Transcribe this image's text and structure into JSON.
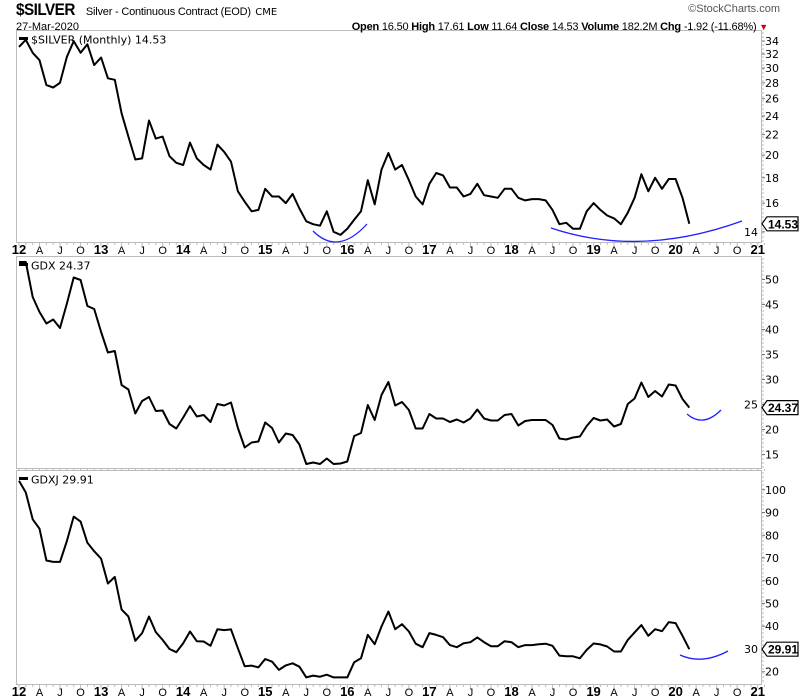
{
  "header": {
    "symbol": "$SILVER",
    "description": "Silver - Continuous Contract (EOD)",
    "exchange": "CME",
    "copyright": "©StockCharts.com",
    "date": "27-Mar-2020",
    "open_label": "Open",
    "open": "16.50",
    "high_label": "High",
    "high": "17.61",
    "low_label": "Low",
    "low": "11.64",
    "close_label": "Close",
    "close": "14.53",
    "volume_label": "Volume",
    "volume": "182.2M",
    "chg_label": "Chg",
    "chg": "-1.92 (-11.68%)",
    "chg_direction_icon": "down-triangle-icon",
    "colors": {
      "line": "#000000",
      "annotation": "#2020ff",
      "down": "#cc0000"
    }
  },
  "x_axis": {
    "start": "2012-01",
    "frequency": "monthly",
    "ticks": [
      {
        "m": 0,
        "label": "12",
        "year": true
      },
      {
        "m": 3,
        "label": "A"
      },
      {
        "m": 6,
        "label": "J"
      },
      {
        "m": 9,
        "label": "O"
      },
      {
        "m": 12,
        "label": "13",
        "year": true
      },
      {
        "m": 15,
        "label": "A"
      },
      {
        "m": 18,
        "label": "J"
      },
      {
        "m": 21,
        "label": "O"
      },
      {
        "m": 24,
        "label": "14",
        "year": true
      },
      {
        "m": 27,
        "label": "A"
      },
      {
        "m": 30,
        "label": "J"
      },
      {
        "m": 33,
        "label": "O"
      },
      {
        "m": 36,
        "label": "15",
        "year": true
      },
      {
        "m": 39,
        "label": "A"
      },
      {
        "m": 42,
        "label": "J"
      },
      {
        "m": 45,
        "label": "O"
      },
      {
        "m": 48,
        "label": "16",
        "year": true
      },
      {
        "m": 51,
        "label": "A"
      },
      {
        "m": 54,
        "label": "J"
      },
      {
        "m": 57,
        "label": "O"
      },
      {
        "m": 60,
        "label": "17",
        "year": true
      },
      {
        "m": 63,
        "label": "A"
      },
      {
        "m": 66,
        "label": "J"
      },
      {
        "m": 69,
        "label": "O"
      },
      {
        "m": 72,
        "label": "18",
        "year": true
      },
      {
        "m": 75,
        "label": "A"
      },
      {
        "m": 78,
        "label": "J"
      },
      {
        "m": 81,
        "label": "O"
      },
      {
        "m": 84,
        "label": "19",
        "year": true
      },
      {
        "m": 87,
        "label": "A"
      },
      {
        "m": 90,
        "label": "J"
      },
      {
        "m": 93,
        "label": "O"
      },
      {
        "m": 96,
        "label": "20",
        "year": true
      },
      {
        "m": 99,
        "label": "A"
      },
      {
        "m": 102,
        "label": "J"
      },
      {
        "m": 105,
        "label": "O"
      },
      {
        "m": 108,
        "label": "21",
        "year": true
      }
    ]
  },
  "chart_data": [
    {
      "type": "line",
      "legend": "$SILVER (Monthly) 14.53",
      "series_name": "$SILVER",
      "scale": "log",
      "ylim": [
        13.35,
        35.8
      ],
      "yticks": [
        14,
        16,
        18,
        20,
        22,
        24,
        26,
        28,
        30,
        32,
        34
      ],
      "last_value": "14.53",
      "values": [
        33.1,
        34.2,
        32.2,
        31.1,
        27.7,
        27.4,
        28.0,
        31.6,
        34.0,
        32.2,
        33.5,
        30.4,
        31.5,
        28.6,
        28.4,
        24.3,
        21.8,
        19.6,
        19.7,
        23.5,
        21.6,
        21.8,
        19.9,
        19.3,
        19.1,
        21.2,
        19.7,
        19.1,
        18.7,
        21.0,
        20.3,
        19.4,
        16.9,
        16.1,
        15.4,
        15.5,
        17.1,
        16.5,
        16.5,
        16.0,
        16.7,
        15.6,
        14.7,
        14.5,
        14.4,
        15.4,
        14.0,
        13.8,
        14.2,
        14.8,
        15.4,
        17.8,
        15.9,
        18.7,
        20.2,
        18.7,
        19.1,
        17.8,
        16.5,
        15.9,
        17.5,
        18.4,
        18.2,
        17.2,
        17.2,
        16.5,
        16.7,
        17.5,
        16.6,
        16.5,
        16.4,
        17.1,
        17.1,
        16.4,
        16.2,
        16.3,
        16.3,
        16.2,
        15.5,
        14.5,
        14.6,
        14.2,
        14.2,
        15.4,
        16.0,
        15.5,
        15.1,
        14.9,
        14.5,
        15.3,
        16.4,
        18.3,
        16.9,
        18.0,
        17.1,
        17.9,
        17.9,
        16.4,
        14.53
      ]
    },
    {
      "type": "line",
      "legend": "GDX 24.37",
      "series_name": "GDX",
      "scale": "linear",
      "ylim": [
        12.3,
        54.7
      ],
      "yticks": [
        15,
        20,
        25,
        30,
        35,
        40,
        45,
        50
      ],
      "last_value": "24.37",
      "values": [
        53.5,
        53.5,
        46.5,
        43.5,
        41.2,
        42.0,
        40.3,
        45.2,
        50.4,
        49.9,
        44.7,
        44.1,
        39.5,
        35.4,
        35.7,
        28.9,
        28.0,
        23.2,
        25.7,
        26.5,
        23.7,
        23.8,
        21.1,
        20.2,
        22.4,
        24.7,
        22.6,
        22.9,
        21.5,
        25.1,
        24.8,
        25.4,
        20.3,
        16.4,
        17.4,
        17.6,
        21.4,
        20.3,
        17.4,
        19.2,
        18.9,
        17.0,
        13.1,
        13.4,
        13.1,
        14.2,
        13.1,
        13.2,
        13.6,
        18.7,
        19.3,
        24.9,
        21.9,
        26.9,
        29.5,
        24.8,
        25.5,
        23.9,
        20.2,
        20.2,
        23.1,
        22.2,
        22.2,
        21.5,
        22.0,
        21.4,
        22.2,
        24.0,
        22.2,
        21.8,
        21.8,
        22.9,
        23.1,
        20.8,
        21.7,
        21.9,
        21.9,
        21.9,
        20.9,
        18.2,
        18.0,
        18.4,
        18.6,
        20.7,
        22.3,
        21.8,
        22.0,
        20.6,
        21.1,
        25.1,
        26.2,
        29.4,
        26.5,
        27.7,
        26.6,
        29.0,
        28.8,
        26.1,
        24.37
      ]
    },
    {
      "type": "line",
      "legend": "GDXJ 29.91",
      "series_name": "GDXJ",
      "scale": "linear",
      "ylim": [
        14.6,
        108.7
      ],
      "yticks": [
        20,
        30,
        40,
        50,
        60,
        70,
        80,
        90,
        100
      ],
      "last_value": "29.91",
      "values": [
        104,
        98.8,
        87.0,
        82.9,
        68.9,
        68.3,
        68.3,
        77.5,
        88.2,
        86.0,
        76.7,
        73.0,
        69.7,
        58.8,
        61.7,
        47.3,
        44.3,
        33.6,
        37.0,
        44.3,
        37.4,
        34.0,
        30.0,
        28.6,
        32.5,
        37.7,
        33.4,
        33.3,
        31.4,
        38.7,
        38.3,
        38.6,
        30.3,
        22.4,
        22.7,
        21.9,
        25.6,
        24.4,
        20.8,
        22.8,
        23.7,
        22.2,
        17.5,
        18.3,
        17.8,
        18.7,
        17.5,
        17.5,
        17.5,
        24.2,
        25.9,
        36.2,
        32.1,
        39.9,
        46.5,
        38.7,
        40.9,
        37.7,
        32.3,
        30.8,
        37.0,
        36.2,
        35.2,
        31.7,
        30.8,
        32.5,
        33.0,
        35.1,
        33.0,
        31.2,
        31.2,
        33.4,
        33.0,
        30.8,
        31.7,
        31.7,
        32.1,
        32.3,
        31.4,
        27.1,
        26.8,
        26.8,
        25.9,
        29.6,
        32.4,
        32.0,
        31.1,
        28.9,
        28.9,
        34.0,
        37.3,
        40.5,
        35.8,
        38.7,
        37.8,
        41.8,
        41.4,
        35.8,
        29.91
      ]
    }
  ]
}
